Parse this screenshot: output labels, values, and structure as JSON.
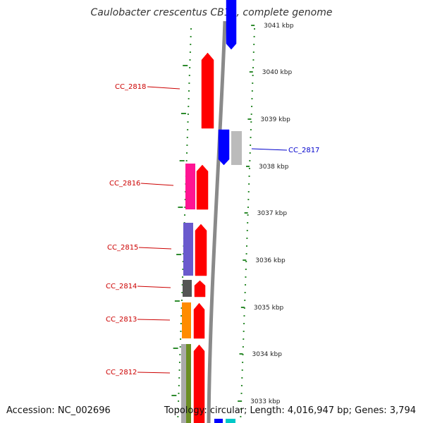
{
  "title": "Caulobacter crescentus CB15, complete genome",
  "footer": {
    "accession": "Accession: NC_002696",
    "summary": "Topology: circular; Length: 4,016,947 bp; Genes: 3,794"
  },
  "colors": {
    "forward": "#ff0000",
    "reverse": "#0000ff",
    "backbone": "#8a8a8a",
    "dots": "#2e8b2e",
    "forward_label": "#cc0000",
    "reverse_label": "#0000cc"
  },
  "ticks": [
    "3041 kbp",
    "3040 kbp",
    "3039 kbp",
    "3038 kbp",
    "3037 kbp",
    "3036 kbp",
    "3035 kbp",
    "3034 kbp",
    "3033 kbp"
  ],
  "gene_labels": [
    {
      "name": "CC_2818",
      "strand": "forward"
    },
    {
      "name": "CC_2817",
      "strand": "reverse"
    },
    {
      "name": "CC_2816",
      "strand": "forward"
    },
    {
      "name": "CC_2815",
      "strand": "forward"
    },
    {
      "name": "CC_2814",
      "strand": "forward"
    },
    {
      "name": "CC_2813",
      "strand": "forward"
    },
    {
      "name": "CC_2812",
      "strand": "forward"
    }
  ],
  "feature_colors": {
    "cc_2816_cog": "#ff1493",
    "cc_2815_cog": "#6a5acd",
    "cc_2814_cog": "#555555",
    "cc_2813_cog": "#ff8c00",
    "cc_2812_cog_a": "#aaaaaa",
    "cc_2812_cog_b": "#6b8e23",
    "cc_2817_cog": "#bbbbbb",
    "bottom_cog": "#00c8c8"
  }
}
